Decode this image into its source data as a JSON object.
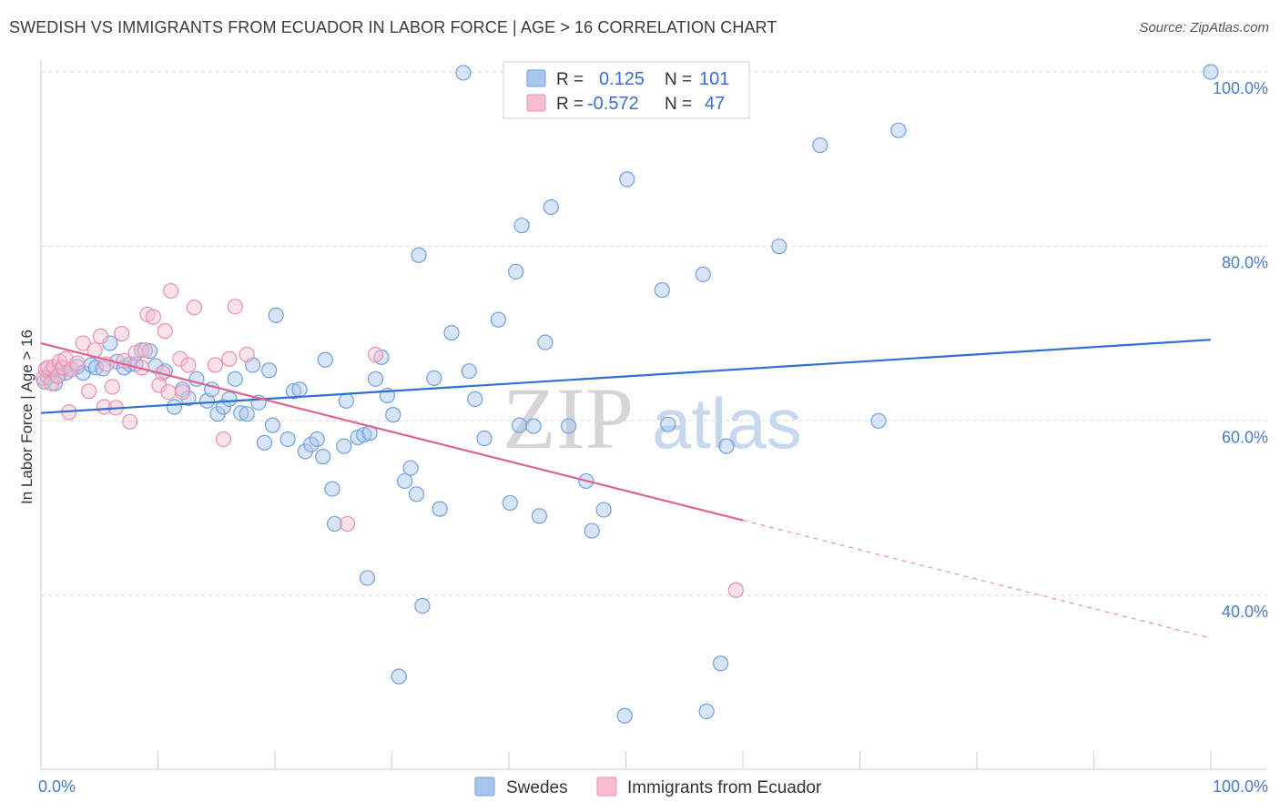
{
  "title": "SWEDISH VS IMMIGRANTS FROM ECUADOR IN LABOR FORCE | AGE > 16 CORRELATION CHART",
  "source": "Source: ZipAtlas.com",
  "watermark": {
    "zip": "ZIP",
    "atlas": "atlas"
  },
  "legend": {
    "rows": [
      {
        "r_label": "R =",
        "r_value": "0.125",
        "n_label": "N =",
        "n_value": "101"
      },
      {
        "r_label": "R =",
        "r_value": "-0.572",
        "n_label": "N =",
        "n_value": "47"
      }
    ]
  },
  "colors": {
    "blue_fill": "#a9c6ef",
    "blue_stroke": "#6f9fe0",
    "blue_line": "#2f6fd0",
    "pink_fill": "#f6bccf",
    "pink_stroke": "#ec8fad",
    "pink_line": "#e0628f",
    "grid": "#d9d9d9",
    "tick_text": "#4a7cc9"
  },
  "chart_data": {
    "type": "scatter",
    "title": "SWEDISH VS IMMIGRANTS FROM ECUADOR IN LABOR FORCE | AGE > 16 CORRELATION CHART",
    "xlabel": "",
    "ylabel": "In Labor Force | Age > 16",
    "xlim": [
      0,
      100
    ],
    "ylim": [
      20,
      102
    ],
    "x_tick_labels": [
      {
        "value": 0,
        "label": "0.0%"
      },
      {
        "value": 100,
        "label": "100.0%"
      }
    ],
    "y_ticks": [
      {
        "value": 40,
        "label": "40.0%"
      },
      {
        "value": 60,
        "label": "60.0%"
      },
      {
        "value": 80,
        "label": "80.0%"
      },
      {
        "value": 100,
        "label": "100.0%"
      }
    ],
    "series": [
      {
        "name": "Swedes",
        "r": 0.125,
        "n": 101,
        "trend": {
          "x0": 0,
          "y0": 60.9,
          "x1": 100,
          "y1": 69.3
        },
        "points": [
          [
            0.3,
            64.5
          ],
          [
            0.6,
            65
          ],
          [
            0.9,
            65.8
          ],
          [
            1.2,
            64.3
          ],
          [
            1.5,
            65.2
          ],
          [
            1.8,
            66.1
          ],
          [
            2.1,
            65.5
          ],
          [
            2.6,
            65.9
          ],
          [
            3.1,
            66.2
          ],
          [
            3.6,
            65.5
          ],
          [
            4.3,
            66.4
          ],
          [
            4.7,
            66.1
          ],
          [
            5.3,
            66
          ],
          [
            5.9,
            68.9
          ],
          [
            6.5,
            66.8
          ],
          [
            7.1,
            66.1
          ],
          [
            7.6,
            66.5
          ],
          [
            8.1,
            66.5
          ],
          [
            8.6,
            68.1
          ],
          [
            9.3,
            68
          ],
          [
            9.8,
            66.3
          ],
          [
            10.6,
            65.7
          ],
          [
            11.4,
            61.6
          ],
          [
            12.1,
            63.6
          ],
          [
            12.6,
            62.6
          ],
          [
            13.3,
            64.8
          ],
          [
            14.2,
            62.3
          ],
          [
            14.6,
            63.6
          ],
          [
            15.1,
            60.8
          ],
          [
            15.6,
            61.6
          ],
          [
            16.1,
            62.5
          ],
          [
            16.6,
            64.8
          ],
          [
            17.1,
            60.9
          ],
          [
            17.6,
            60.8
          ],
          [
            18.1,
            66.4
          ],
          [
            18.6,
            62.1
          ],
          [
            19.1,
            57.5
          ],
          [
            19.5,
            65.8
          ],
          [
            19.8,
            59.5
          ],
          [
            20.1,
            72.1
          ],
          [
            21.1,
            57.9
          ],
          [
            21.6,
            63.4
          ],
          [
            22.1,
            63.6
          ],
          [
            22.6,
            56.5
          ],
          [
            23.1,
            57.3
          ],
          [
            23.6,
            57.9
          ],
          [
            24.1,
            55.9
          ],
          [
            24.3,
            67
          ],
          [
            24.9,
            52.2
          ],
          [
            25.1,
            48.2
          ],
          [
            25.9,
            57.1
          ],
          [
            26.1,
            62.3
          ],
          [
            27.1,
            58.1
          ],
          [
            27.6,
            58.4
          ],
          [
            27.9,
            42
          ],
          [
            28.1,
            58.6
          ],
          [
            28.6,
            64.8
          ],
          [
            29.1,
            67.3
          ],
          [
            29.6,
            62.9
          ],
          [
            30.1,
            60.7
          ],
          [
            30.6,
            30.7
          ],
          [
            31.1,
            53.1
          ],
          [
            31.6,
            54.6
          ],
          [
            32.1,
            51.6
          ],
          [
            32.3,
            79
          ],
          [
            32.6,
            38.8
          ],
          [
            33.6,
            64.9
          ],
          [
            34.1,
            49.9
          ],
          [
            35.1,
            70.1
          ],
          [
            36.1,
            99.9
          ],
          [
            36.6,
            65.7
          ],
          [
            37.1,
            62.5
          ],
          [
            37.9,
            58
          ],
          [
            39.1,
            71.6
          ],
          [
            40.1,
            50.6
          ],
          [
            40.6,
            77.1
          ],
          [
            40.9,
            59.5
          ],
          [
            41.1,
            82.4
          ],
          [
            42.1,
            59.4
          ],
          [
            42.6,
            49.1
          ],
          [
            43.1,
            69
          ],
          [
            43.6,
            84.5
          ],
          [
            45.1,
            59.4
          ],
          [
            46.6,
            53.1
          ],
          [
            47.1,
            47.4
          ],
          [
            48.1,
            49.8
          ],
          [
            49.9,
            26.2
          ],
          [
            50.1,
            87.7
          ],
          [
            53.1,
            75
          ],
          [
            53.6,
            59.6
          ],
          [
            56.6,
            76.8
          ],
          [
            56.9,
            26.7
          ],
          [
            58.1,
            32.2
          ],
          [
            58.6,
            57.1
          ],
          [
            63.1,
            80
          ],
          [
            66.6,
            91.6
          ],
          [
            71.6,
            60
          ],
          [
            73.3,
            93.3
          ],
          [
            100,
            100
          ]
        ]
      },
      {
        "name": "Immigrants from Ecuador",
        "r": -0.572,
        "n": 47,
        "trend": {
          "x0": 0,
          "y0": 68.9,
          "x1": 60,
          "y1": 48.6,
          "dash_x1": 100,
          "dash_y1": 35.1
        },
        "points": [
          [
            0.2,
            64.9
          ],
          [
            0.4,
            65.9
          ],
          [
            0.6,
            66.1
          ],
          [
            0.9,
            64.3
          ],
          [
            1.1,
            66.2
          ],
          [
            1.4,
            65.1
          ],
          [
            1.6,
            66.8
          ],
          [
            1.9,
            66.1
          ],
          [
            2.1,
            67.1
          ],
          [
            2.4,
            61
          ],
          [
            2.6,
            65.9
          ],
          [
            3.1,
            66.6
          ],
          [
            3.6,
            68.9
          ],
          [
            4.1,
            63.4
          ],
          [
            4.6,
            68.1
          ],
          [
            5.1,
            69.7
          ],
          [
            5.4,
            61.6
          ],
          [
            5.6,
            66.5
          ],
          [
            6.1,
            63.9
          ],
          [
            6.4,
            61.5
          ],
          [
            6.9,
            70
          ],
          [
            7.1,
            66.9
          ],
          [
            7.6,
            59.9
          ],
          [
            8.1,
            67.8
          ],
          [
            8.6,
            66.1
          ],
          [
            8.9,
            68.1
          ],
          [
            9.1,
            72.2
          ],
          [
            9.6,
            71.9
          ],
          [
            10.1,
            64.1
          ],
          [
            10.4,
            65.5
          ],
          [
            10.6,
            70.3
          ],
          [
            10.9,
            63.3
          ],
          [
            11.1,
            74.9
          ],
          [
            11.9,
            67.1
          ],
          [
            12.1,
            63.3
          ],
          [
            12.6,
            66.4
          ],
          [
            13.1,
            73
          ],
          [
            14.9,
            66.4
          ],
          [
            15.6,
            57.9
          ],
          [
            16.1,
            67.1
          ],
          [
            16.6,
            73.1
          ],
          [
            17.6,
            67.6
          ],
          [
            26.2,
            48.2
          ],
          [
            28.6,
            67.6
          ],
          [
            59.4,
            40.6
          ]
        ]
      }
    ]
  }
}
